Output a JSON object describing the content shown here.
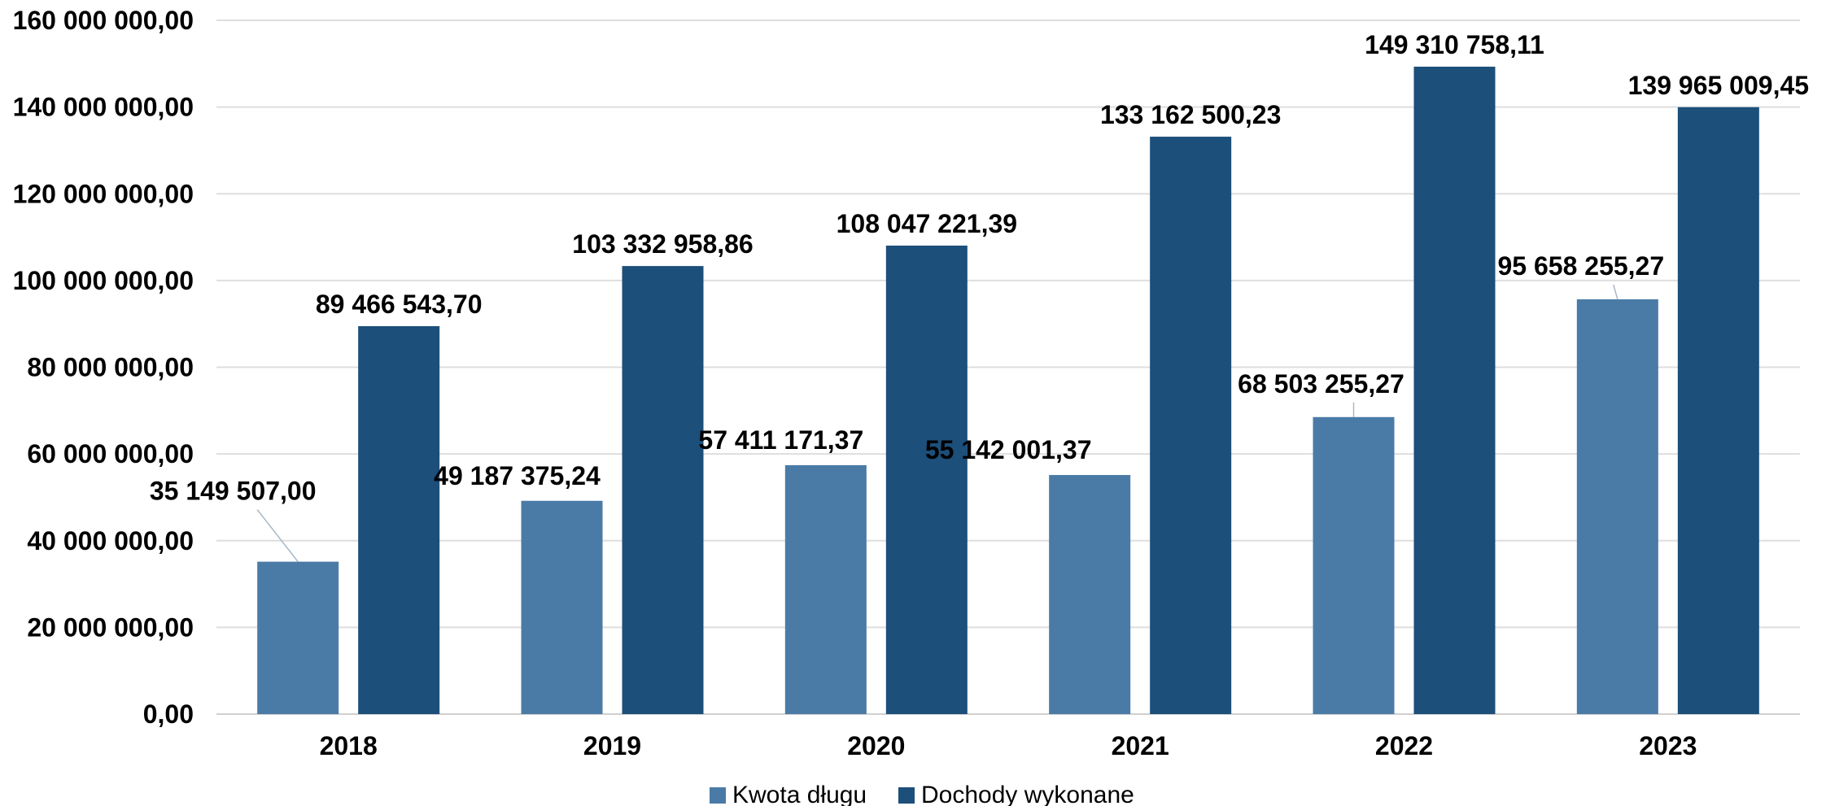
{
  "chart_data": {
    "type": "bar",
    "categories": [
      "2018",
      "2019",
      "2020",
      "2021",
      "2022",
      "2023"
    ],
    "series": [
      {
        "name": "Kwota długu",
        "color": "#4a7ba6",
        "values": [
          35149507.0,
          49187375.24,
          57411171.37,
          55142001.37,
          68503255.27,
          95658255.27
        ],
        "labels": [
          "35 149 507,00",
          "49 187 375,24",
          "57 411 171,37",
          "55 142 001,37",
          "68 503 255,27",
          "95 658 255,27"
        ]
      },
      {
        "name": "Dochody wykonane",
        "color": "#1c4f7a",
        "values": [
          89466543.7,
          103332958.86,
          108047221.39,
          133162500.23,
          149310758.11,
          139965009.45
        ],
        "labels": [
          "89 466 543,70",
          "103 332 958,86",
          "108 047 221,39",
          "133 162 500,23",
          "149 310 758,11",
          "139 965 009,45"
        ]
      }
    ],
    "y_ticks": [
      {
        "value": 0,
        "label": "0,00"
      },
      {
        "value": 20000000,
        "label": "20 000 000,00"
      },
      {
        "value": 40000000,
        "label": "40 000 000,00"
      },
      {
        "value": 60000000,
        "label": "60 000 000,00"
      },
      {
        "value": 80000000,
        "label": "80 000 000,00"
      },
      {
        "value": 100000000,
        "label": "100 000 000,00"
      },
      {
        "value": 120000000,
        "label": "120 000 000,00"
      },
      {
        "value": 140000000,
        "label": "140 000 000,00"
      },
      {
        "value": 160000000,
        "label": "160 000 000,00"
      }
    ],
    "ylim": [
      0,
      160000000
    ],
    "grid": true,
    "legend_position": "bottom",
    "title": "",
    "xlabel": "",
    "ylabel": ""
  }
}
